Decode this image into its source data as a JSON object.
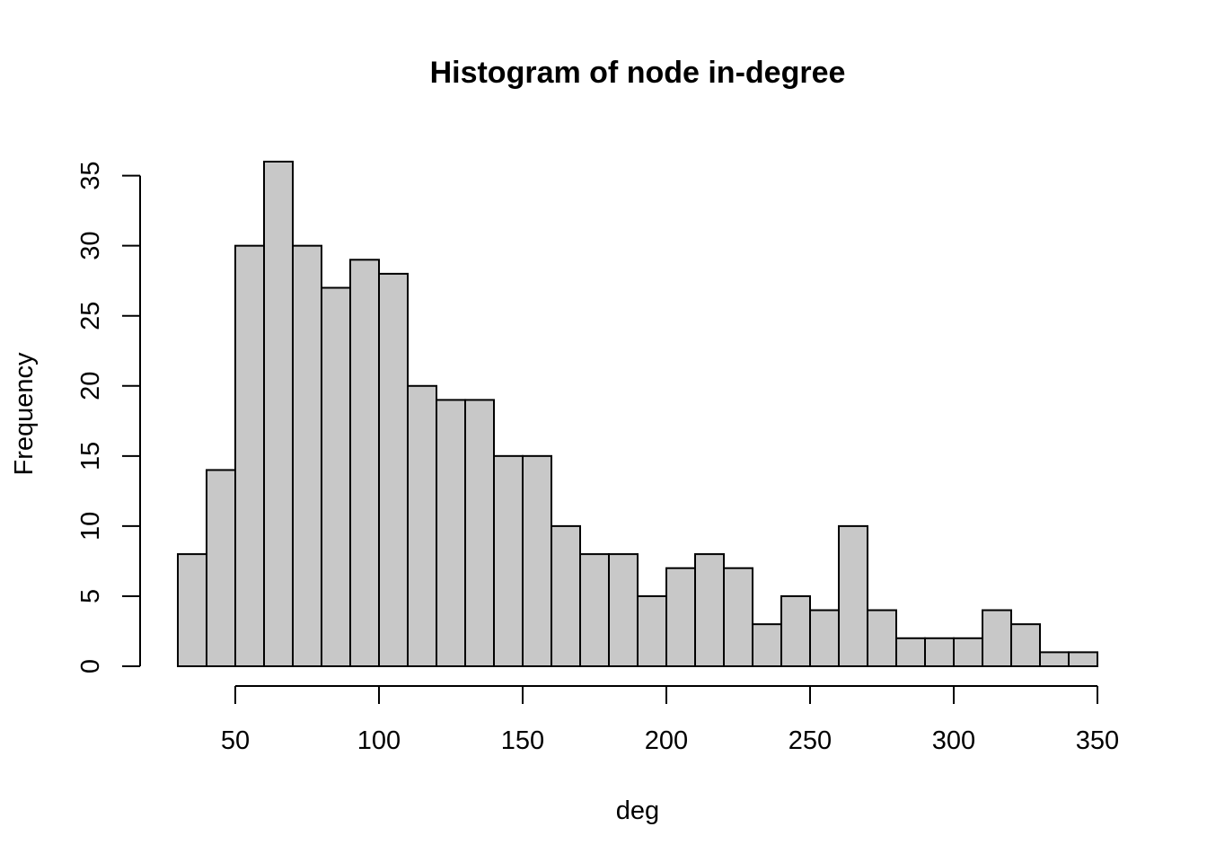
{
  "chart_data": {
    "type": "bar",
    "title": "Histogram of node in-degree",
    "xlabel": "deg",
    "ylabel": "Frequency",
    "bar_color": "#c8c8c8",
    "edge_color": "#000000",
    "bin_width": 10,
    "bin_edges": [
      30,
      40,
      50,
      60,
      70,
      80,
      90,
      100,
      110,
      120,
      130,
      140,
      150,
      160,
      170,
      180,
      190,
      200,
      210,
      220,
      230,
      240,
      250,
      260,
      270,
      280,
      290,
      300,
      310,
      320,
      330,
      340,
      350
    ],
    "values": [
      8,
      14,
      30,
      36,
      30,
      27,
      29,
      28,
      20,
      19,
      19,
      15,
      15,
      10,
      8,
      8,
      5,
      7,
      8,
      7,
      3,
      5,
      4,
      10,
      4,
      2,
      2,
      2,
      4,
      3,
      1,
      1
    ],
    "xlim": [
      30,
      350
    ],
    "ylim": [
      0,
      36
    ],
    "x_ticks": [
      50,
      100,
      150,
      200,
      250,
      300,
      350
    ],
    "x_tick_labels": [
      "50",
      "100",
      "150",
      "200",
      "250",
      "300",
      "350"
    ],
    "y_ticks": [
      0,
      5,
      10,
      15,
      20,
      25,
      30,
      35
    ],
    "y_tick_labels": [
      "0",
      "5",
      "10",
      "15",
      "20",
      "25",
      "30",
      "35"
    ],
    "grid": false,
    "legend": "none"
  }
}
